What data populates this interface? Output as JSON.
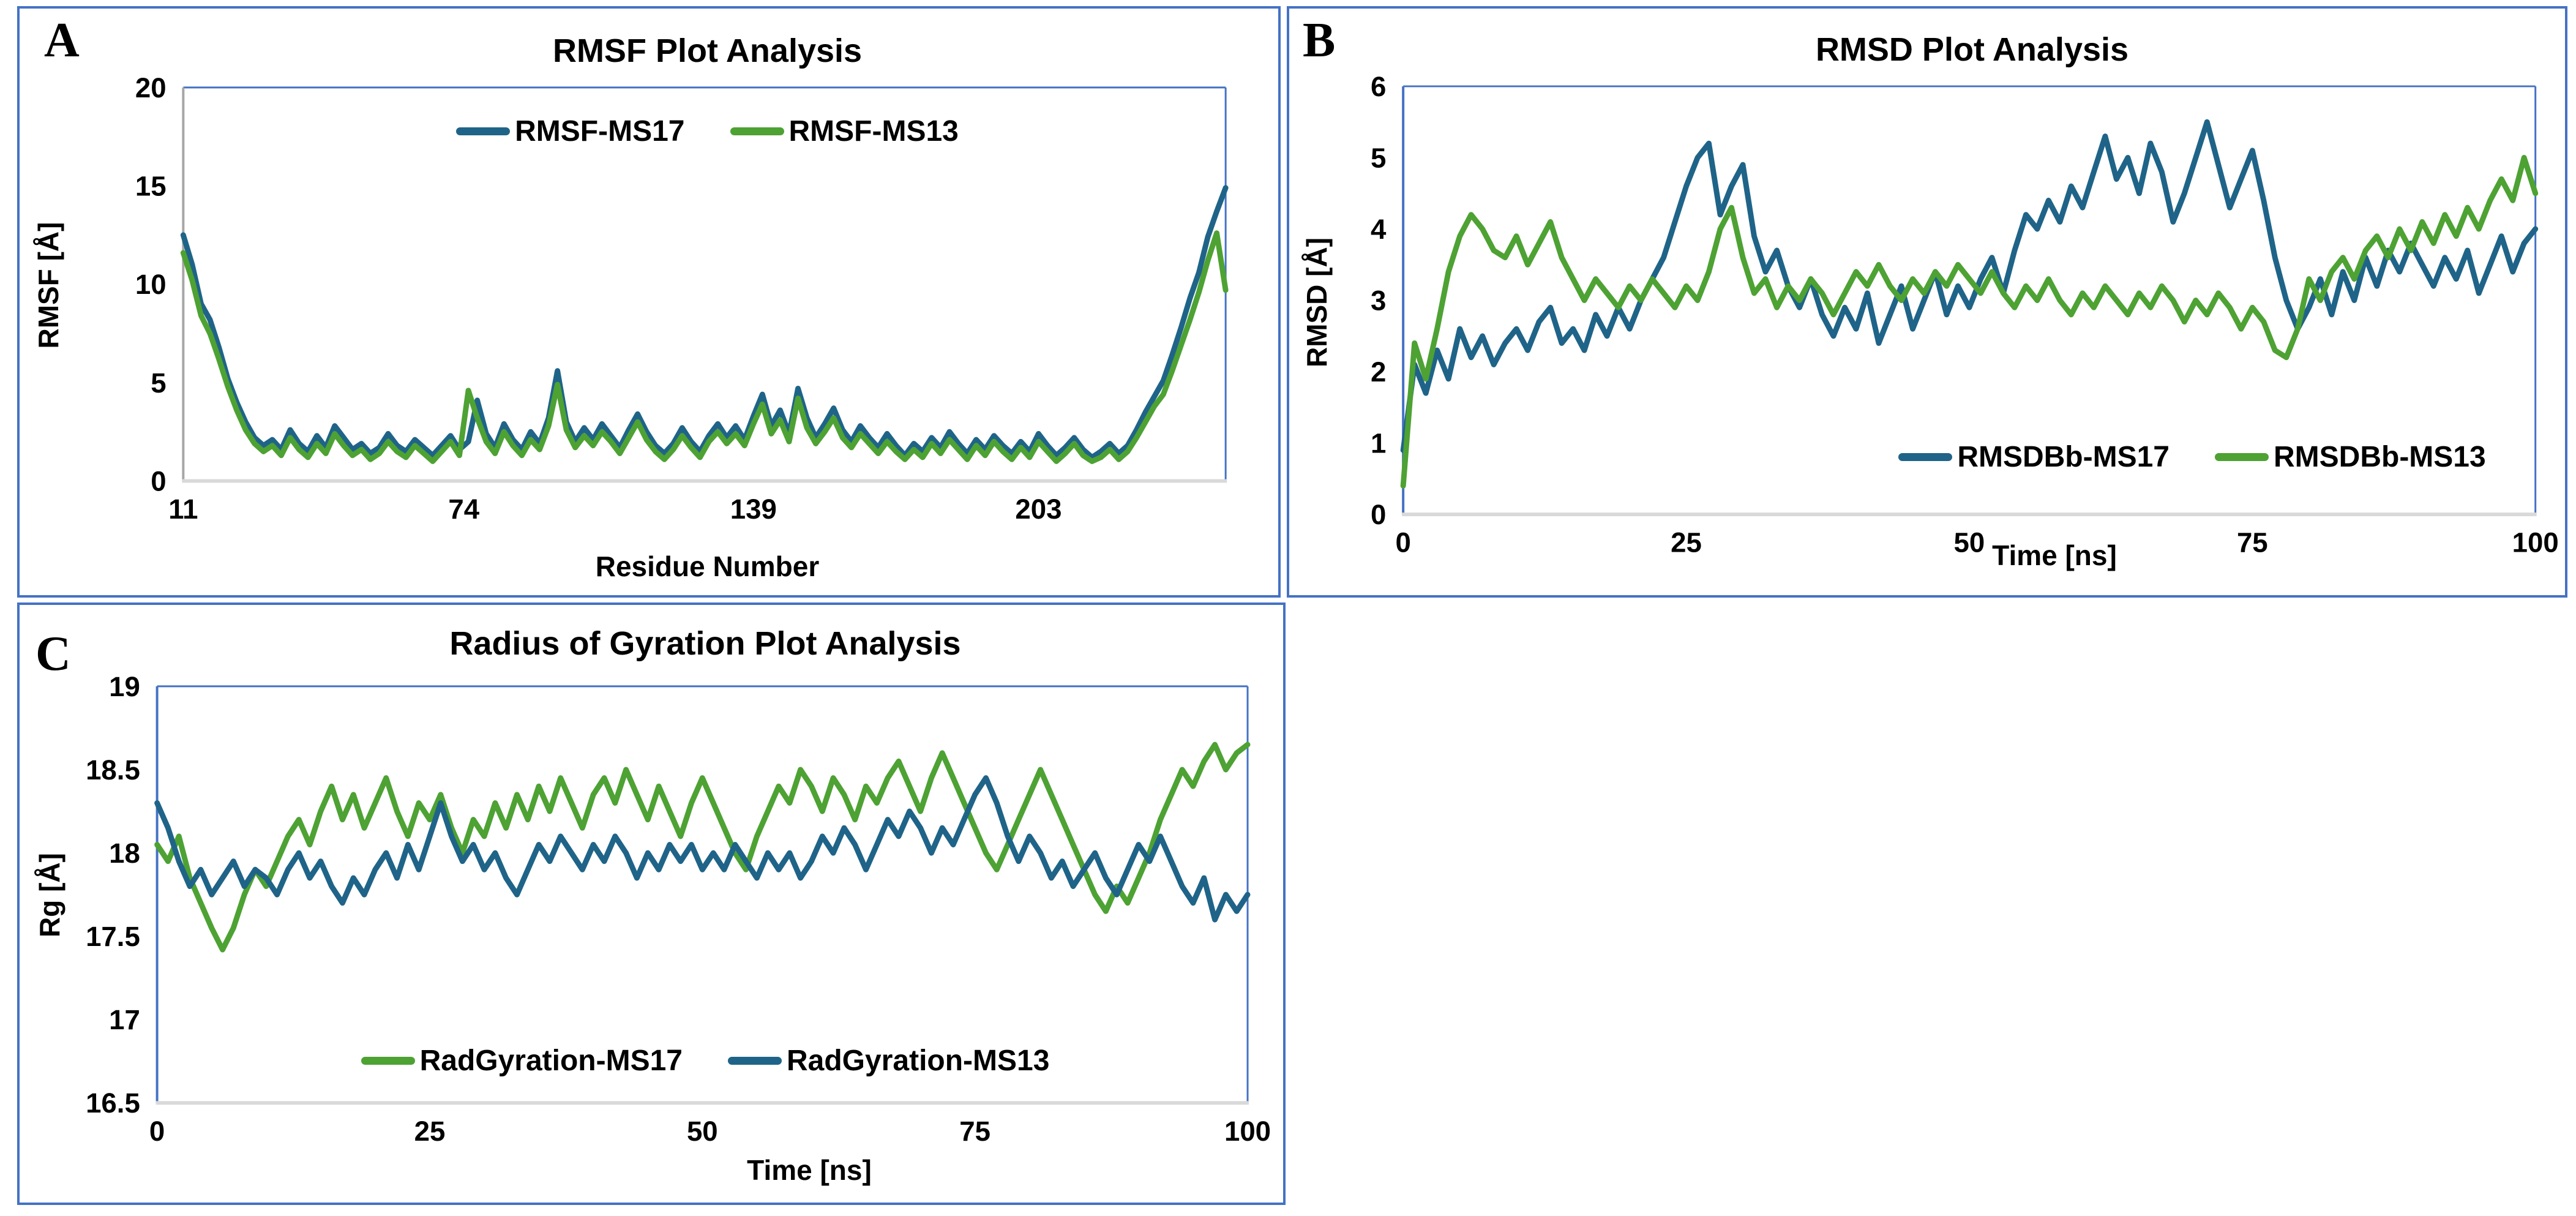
{
  "colors": {
    "panel_border": "#4472c4",
    "plot_border": "#4472c4",
    "axis_gray_light": "#d9d9d9",
    "axis_gray": "#a6a6a6",
    "series_blue": "#1f6488",
    "series_green": "#4da233",
    "text": "#000000"
  },
  "chart_data": [
    {
      "type": "line",
      "panel_label": "A",
      "title": "RMSF Plot Analysis",
      "xlabel": "Residue Number",
      "ylabel": "RMSF [Å]",
      "x_range": [
        11,
        245
      ],
      "y_range": [
        0,
        20
      ],
      "x_ticks": [
        11,
        74,
        139,
        203
      ],
      "y_ticks": [
        0,
        5,
        10,
        15,
        20
      ],
      "grid": false,
      "legend_position": "top-center-inside",
      "border_color": "#4472c4",
      "left_axis_color": "#a6a6a6",
      "bottom_axis_color": "#d9d9d9",
      "series": [
        {
          "name": "RMSF-MS17",
          "color": "#1f6488",
          "x_start": 11,
          "x_step": 2,
          "values": [
            12.5,
            11.0,
            9.0,
            8.2,
            6.8,
            5.2,
            4.0,
            3.0,
            2.2,
            1.8,
            2.1,
            1.6,
            2.6,
            1.9,
            1.5,
            2.3,
            1.7,
            2.8,
            2.2,
            1.6,
            1.9,
            1.4,
            1.7,
            2.4,
            1.8,
            1.5,
            2.1,
            1.7,
            1.3,
            1.8,
            2.3,
            1.6,
            2.0,
            4.1,
            2.4,
            1.7,
            2.9,
            2.1,
            1.6,
            2.5,
            1.9,
            3.2,
            5.6,
            3.0,
            2.0,
            2.7,
            2.1,
            2.9,
            2.3,
            1.7,
            2.6,
            3.4,
            2.5,
            1.8,
            1.4,
            1.9,
            2.7,
            2.0,
            1.5,
            2.3,
            2.9,
            2.2,
            2.8,
            2.1,
            3.3,
            4.4,
            2.8,
            3.6,
            2.4,
            4.7,
            3.2,
            2.2,
            2.9,
            3.7,
            2.6,
            2.0,
            2.8,
            2.2,
            1.7,
            2.4,
            1.8,
            1.3,
            1.9,
            1.5,
            2.2,
            1.7,
            2.5,
            1.9,
            1.4,
            2.1,
            1.6,
            2.3,
            1.8,
            1.4,
            2.0,
            1.5,
            2.4,
            1.8,
            1.3,
            1.7,
            2.2,
            1.6,
            1.2,
            1.5,
            1.9,
            1.4,
            1.8,
            2.6,
            3.5,
            4.3,
            5.1,
            6.4,
            7.8,
            9.3,
            10.6,
            12.4,
            13.7,
            14.9
          ]
        },
        {
          "name": "RMSF-MS13",
          "color": "#4da233",
          "x_start": 11,
          "x_step": 2,
          "values": [
            11.6,
            10.2,
            8.4,
            7.5,
            6.2,
            4.8,
            3.6,
            2.6,
            1.9,
            1.5,
            1.8,
            1.3,
            2.2,
            1.6,
            1.2,
            1.9,
            1.4,
            2.4,
            1.8,
            1.3,
            1.6,
            1.1,
            1.4,
            2.0,
            1.5,
            1.2,
            1.8,
            1.4,
            1.0,
            1.5,
            2.0,
            1.3,
            4.6,
            3.2,
            2.0,
            1.4,
            2.5,
            1.8,
            1.3,
            2.1,
            1.6,
            2.8,
            4.9,
            2.6,
            1.7,
            2.3,
            1.8,
            2.5,
            2.0,
            1.4,
            2.2,
            3.0,
            2.1,
            1.5,
            1.1,
            1.6,
            2.3,
            1.7,
            1.2,
            2.0,
            2.5,
            1.9,
            2.4,
            1.8,
            2.9,
            3.9,
            2.4,
            3.1,
            2.0,
            4.2,
            2.7,
            1.9,
            2.5,
            3.2,
            2.2,
            1.7,
            2.4,
            1.9,
            1.4,
            2.0,
            1.5,
            1.1,
            1.6,
            1.2,
            1.9,
            1.4,
            2.1,
            1.6,
            1.1,
            1.8,
            1.3,
            2.0,
            1.5,
            1.1,
            1.7,
            1.2,
            2.0,
            1.5,
            1.0,
            1.4,
            1.9,
            1.3,
            1.0,
            1.2,
            1.6,
            1.1,
            1.5,
            2.2,
            3.0,
            3.8,
            4.4,
            5.6,
            6.9,
            8.2,
            9.6,
            11.2,
            12.6,
            9.7
          ]
        }
      ]
    },
    {
      "type": "line",
      "panel_label": "B",
      "title": "RMSD Plot Analysis",
      "xlabel": "Time [ns]",
      "ylabel": "RMSD [Å]",
      "x_range": [
        0,
        100
      ],
      "y_range": [
        0,
        6
      ],
      "x_ticks": [
        0,
        25,
        50,
        75,
        100
      ],
      "y_ticks": [
        0,
        1,
        2,
        3,
        4,
        5,
        6
      ],
      "grid": false,
      "legend_position": "bottom-right-inside",
      "border_color": "#4472c4",
      "left_axis_color": "#4472c4",
      "bottom_axis_color": "#d9d9d9",
      "series": [
        {
          "name": "RMSDBb-MS17",
          "color": "#1f6488",
          "x_start": 0,
          "x_step": 1,
          "values": [
            0.9,
            2.1,
            1.7,
            2.3,
            1.9,
            2.6,
            2.2,
            2.5,
            2.1,
            2.4,
            2.6,
            2.3,
            2.7,
            2.9,
            2.4,
            2.6,
            2.3,
            2.8,
            2.5,
            2.9,
            2.6,
            3.0,
            3.3,
            3.6,
            4.1,
            4.6,
            5.0,
            5.2,
            4.2,
            4.6,
            4.9,
            3.9,
            3.4,
            3.7,
            3.2,
            2.9,
            3.3,
            2.8,
            2.5,
            2.9,
            2.6,
            3.1,
            2.4,
            2.8,
            3.2,
            2.6,
            3.0,
            3.4,
            2.8,
            3.2,
            2.9,
            3.3,
            3.6,
            3.1,
            3.7,
            4.2,
            4.0,
            4.4,
            4.1,
            4.6,
            4.3,
            4.8,
            5.3,
            4.7,
            5.0,
            4.5,
            5.2,
            4.8,
            4.1,
            4.5,
            5.0,
            5.5,
            4.9,
            4.3,
            4.7,
            5.1,
            4.4,
            3.6,
            3.0,
            2.6,
            2.9,
            3.3,
            2.8,
            3.4,
            3.0,
            3.6,
            3.2,
            3.7,
            3.4,
            3.8,
            3.5,
            3.2,
            3.6,
            3.3,
            3.7,
            3.1,
            3.5,
            3.9,
            3.4,
            3.8,
            4.0
          ]
        },
        {
          "name": "RMSDBb-MS13",
          "color": "#4da233",
          "x_start": 0,
          "x_step": 1,
          "values": [
            0.4,
            2.4,
            1.9,
            2.6,
            3.4,
            3.9,
            4.2,
            4.0,
            3.7,
            3.6,
            3.9,
            3.5,
            3.8,
            4.1,
            3.6,
            3.3,
            3.0,
            3.3,
            3.1,
            2.9,
            3.2,
            3.0,
            3.3,
            3.1,
            2.9,
            3.2,
            3.0,
            3.4,
            4.0,
            4.3,
            3.6,
            3.1,
            3.3,
            2.9,
            3.2,
            3.0,
            3.3,
            3.1,
            2.8,
            3.1,
            3.4,
            3.2,
            3.5,
            3.2,
            3.0,
            3.3,
            3.1,
            3.4,
            3.2,
            3.5,
            3.3,
            3.1,
            3.4,
            3.1,
            2.9,
            3.2,
            3.0,
            3.3,
            3.0,
            2.8,
            3.1,
            2.9,
            3.2,
            3.0,
            2.8,
            3.1,
            2.9,
            3.2,
            3.0,
            2.7,
            3.0,
            2.8,
            3.1,
            2.9,
            2.6,
            2.9,
            2.7,
            2.3,
            2.2,
            2.6,
            3.3,
            3.0,
            3.4,
            3.6,
            3.3,
            3.7,
            3.9,
            3.6,
            4.0,
            3.7,
            4.1,
            3.8,
            4.2,
            3.9,
            4.3,
            4.0,
            4.4,
            4.7,
            4.4,
            5.0,
            4.5
          ]
        }
      ]
    },
    {
      "type": "line",
      "panel_label": "C",
      "title": "Radius of Gyration Plot Analysis",
      "xlabel": "Time [ns]",
      "ylabel": "Rg [Å]",
      "x_range": [
        0,
        100
      ],
      "y_range": [
        16.5,
        19
      ],
      "x_ticks": [
        0,
        25,
        50,
        75,
        100
      ],
      "y_ticks": [
        16.5,
        17,
        17.5,
        18,
        18.5,
        19
      ],
      "grid": false,
      "legend_position": "bottom-center-inside",
      "border_color": "#4472c4",
      "left_axis_color": "#4472c4",
      "bottom_axis_color": "#d9d9d9",
      "series": [
        {
          "name": "RadGyration-MS17",
          "color": "#4da233",
          "x_start": 0,
          "x_step": 1,
          "values": [
            18.05,
            17.95,
            18.1,
            17.85,
            17.7,
            17.55,
            17.42,
            17.55,
            17.75,
            17.9,
            17.8,
            17.95,
            18.1,
            18.2,
            18.05,
            18.25,
            18.4,
            18.2,
            18.35,
            18.15,
            18.3,
            18.45,
            18.25,
            18.1,
            18.3,
            18.2,
            18.35,
            18.15,
            18.0,
            18.2,
            18.1,
            18.3,
            18.15,
            18.35,
            18.2,
            18.4,
            18.25,
            18.45,
            18.3,
            18.15,
            18.35,
            18.45,
            18.3,
            18.5,
            18.35,
            18.2,
            18.4,
            18.25,
            18.1,
            18.3,
            18.45,
            18.3,
            18.15,
            18.0,
            17.9,
            18.1,
            18.25,
            18.4,
            18.3,
            18.5,
            18.4,
            18.25,
            18.45,
            18.35,
            18.2,
            18.4,
            18.3,
            18.45,
            18.55,
            18.4,
            18.25,
            18.45,
            18.6,
            18.45,
            18.3,
            18.15,
            18.0,
            17.9,
            18.05,
            18.2,
            18.35,
            18.5,
            18.35,
            18.2,
            18.05,
            17.9,
            17.75,
            17.65,
            17.8,
            17.7,
            17.85,
            18.0,
            18.2,
            18.35,
            18.5,
            18.4,
            18.55,
            18.65,
            18.5,
            18.6,
            18.65
          ]
        },
        {
          "name": "RadGyration-MS13",
          "color": "#1f6488",
          "x_start": 0,
          "x_step": 1,
          "values": [
            18.3,
            18.15,
            17.95,
            17.8,
            17.9,
            17.75,
            17.85,
            17.95,
            17.8,
            17.9,
            17.85,
            17.75,
            17.9,
            18.0,
            17.85,
            17.95,
            17.8,
            17.7,
            17.85,
            17.75,
            17.9,
            18.0,
            17.85,
            18.05,
            17.9,
            18.1,
            18.3,
            18.1,
            17.95,
            18.05,
            17.9,
            18.0,
            17.85,
            17.75,
            17.9,
            18.05,
            17.95,
            18.1,
            18.0,
            17.9,
            18.05,
            17.95,
            18.1,
            18.0,
            17.85,
            18.0,
            17.9,
            18.05,
            17.95,
            18.05,
            17.9,
            18.0,
            17.9,
            18.05,
            17.95,
            17.85,
            18.0,
            17.9,
            18.0,
            17.85,
            17.95,
            18.1,
            18.0,
            18.15,
            18.05,
            17.9,
            18.05,
            18.2,
            18.1,
            18.25,
            18.15,
            18.0,
            18.15,
            18.05,
            18.2,
            18.35,
            18.45,
            18.3,
            18.1,
            17.95,
            18.1,
            18.0,
            17.85,
            17.95,
            17.8,
            17.9,
            18.0,
            17.85,
            17.75,
            17.9,
            18.05,
            17.95,
            18.1,
            17.95,
            17.8,
            17.7,
            17.85,
            17.6,
            17.75,
            17.65,
            17.75
          ]
        }
      ]
    }
  ]
}
